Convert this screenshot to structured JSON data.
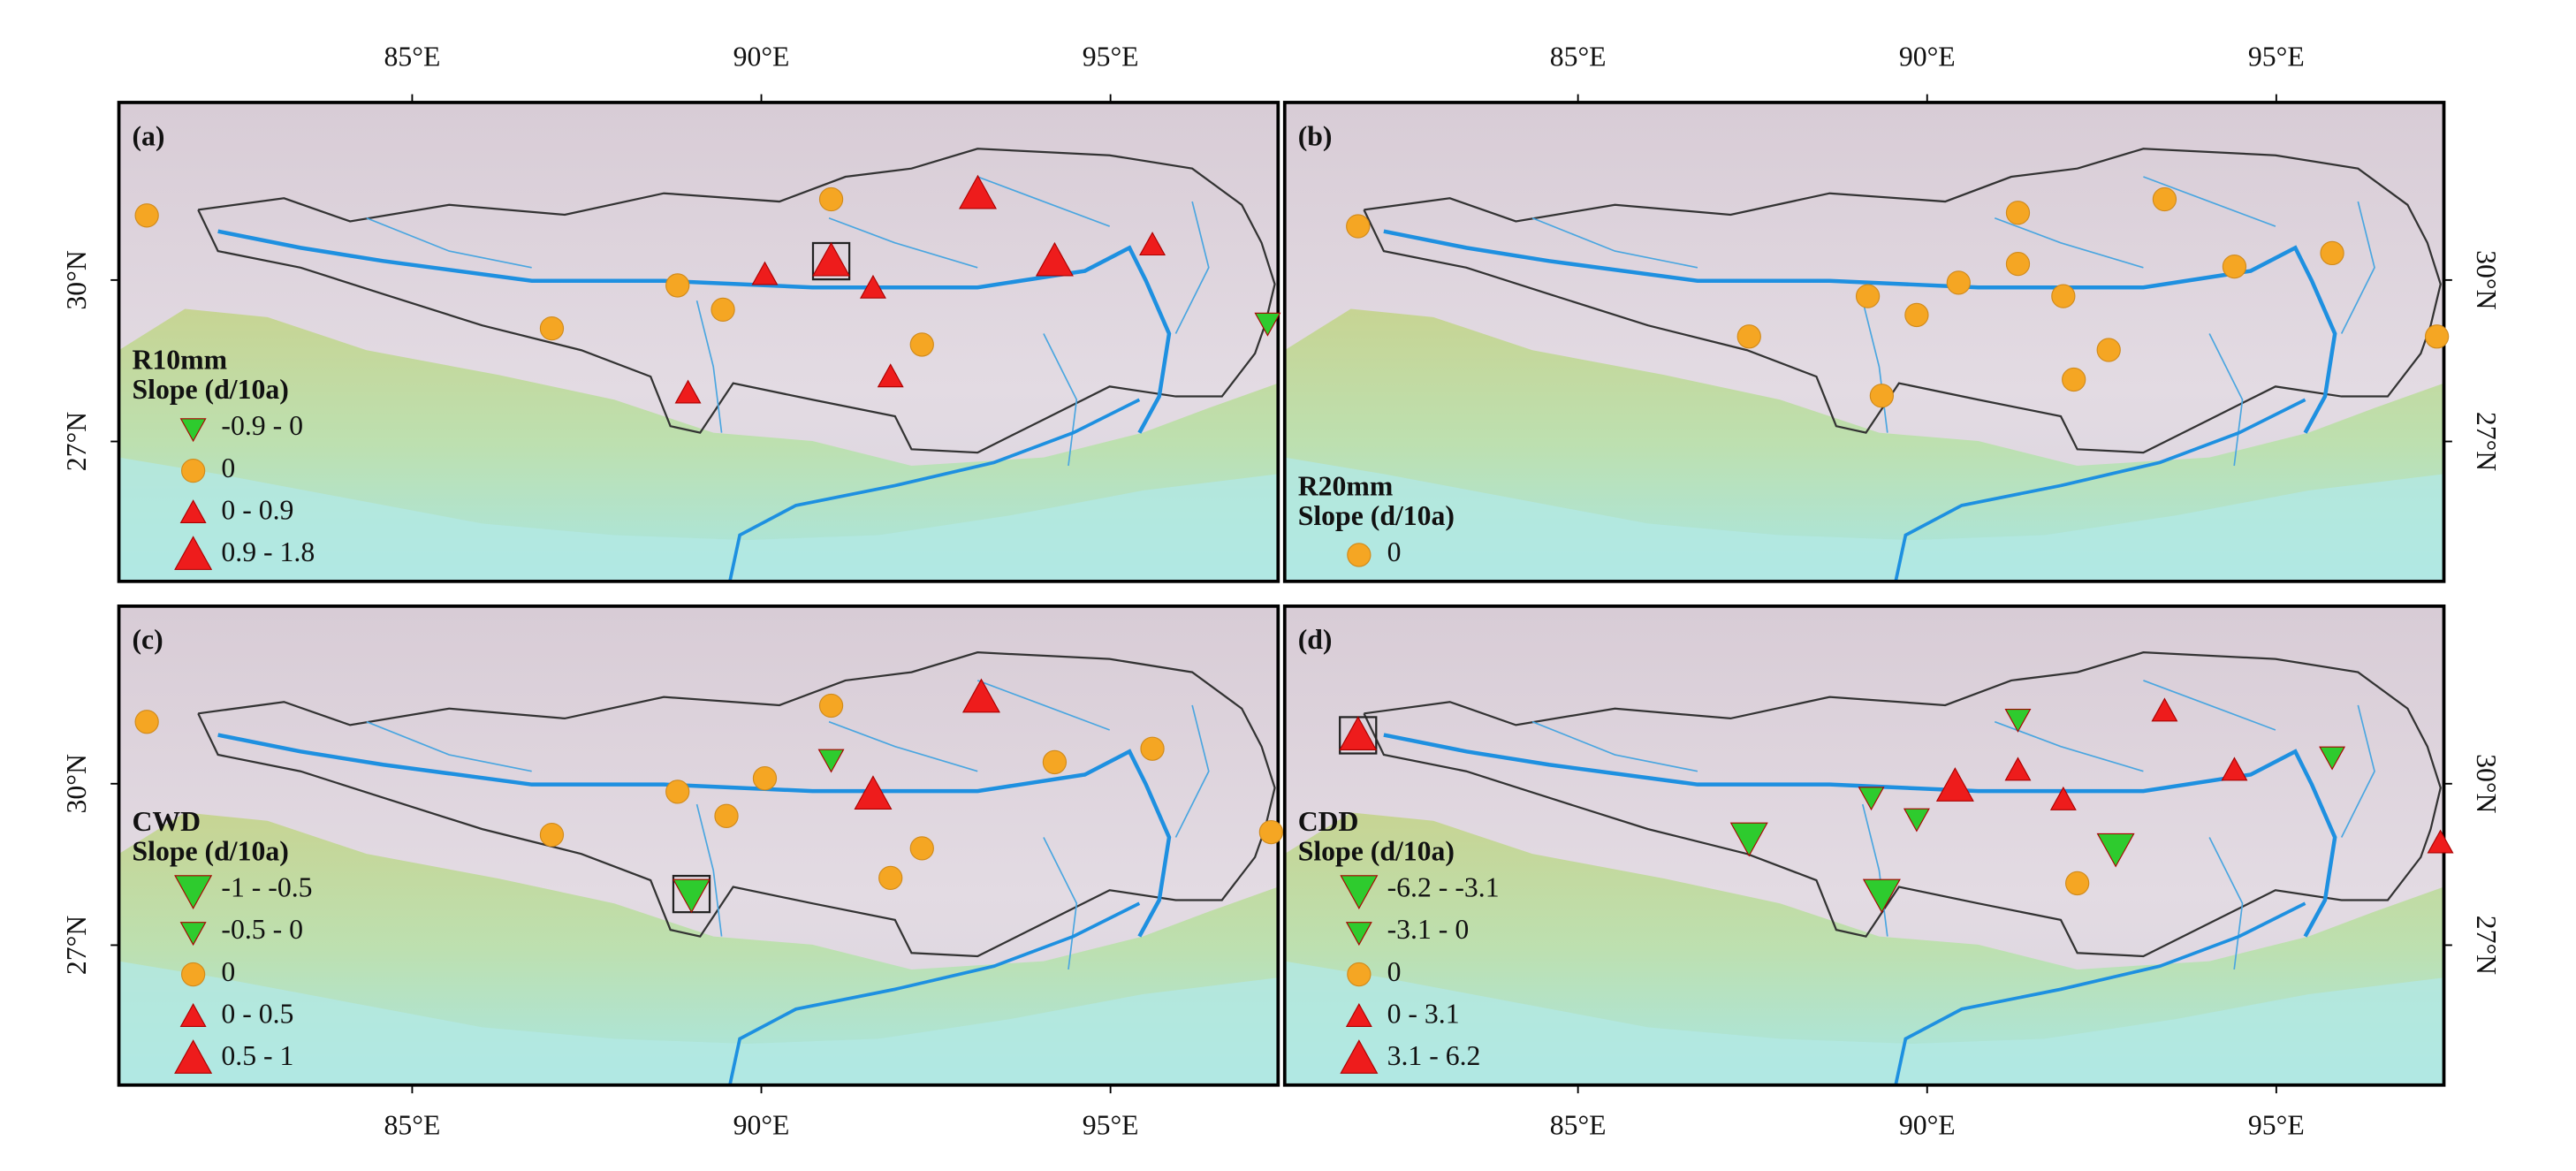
{
  "map": {
    "xlim": [
      80.8,
      97.4
    ],
    "ylim": [
      24.4,
      33.3
    ],
    "xticks": [
      {
        "value": 85,
        "label": "85°E"
      },
      {
        "value": 90,
        "label": "90°E"
      },
      {
        "value": 95,
        "label": "95°E"
      }
    ],
    "yticks": [
      {
        "value": 27,
        "label": "27°N"
      },
      {
        "value": 30,
        "label": "30°N"
      }
    ],
    "panels": [
      {
        "label": "(a)",
        "legend_title": [
          "R10mm",
          "Slope (d/10a)"
        ],
        "legend": [
          {
            "label": "-0.9 - 0",
            "shape": "down",
            "size": "small",
            "color": "#2ecb2e"
          },
          {
            "label": "0",
            "shape": "circle",
            "size": "small",
            "color": "#f5a623"
          },
          {
            "label": "0 - 0.9",
            "shape": "up",
            "size": "small",
            "color": "#ee1c1c"
          },
          {
            "label": "0.9 - 1.8",
            "shape": "up",
            "size": "large",
            "color": "#ee1c1c"
          }
        ],
        "stations": [
          {
            "lon": 81.2,
            "lat": 31.2,
            "class": 1
          },
          {
            "lon": 93.1,
            "lat": 31.6,
            "class": 3
          },
          {
            "lon": 91.0,
            "lat": 31.5,
            "class": 1
          },
          {
            "lon": 91.0,
            "lat": 30.35,
            "class": 3,
            "box": true
          },
          {
            "lon": 90.05,
            "lat": 30.1,
            "class": 2
          },
          {
            "lon": 94.2,
            "lat": 30.35,
            "class": 3
          },
          {
            "lon": 95.6,
            "lat": 30.65,
            "class": 2
          },
          {
            "lon": 88.8,
            "lat": 29.9,
            "class": 1
          },
          {
            "lon": 89.45,
            "lat": 29.45,
            "class": 1
          },
          {
            "lon": 91.6,
            "lat": 29.85,
            "class": 2
          },
          {
            "lon": 87.0,
            "lat": 29.1,
            "class": 1
          },
          {
            "lon": 92.3,
            "lat": 28.8,
            "class": 1
          },
          {
            "lon": 91.85,
            "lat": 28.2,
            "class": 2
          },
          {
            "lon": 88.95,
            "lat": 27.9,
            "class": 2
          },
          {
            "lon": 97.25,
            "lat": 29.2,
            "class": 0
          }
        ]
      },
      {
        "label": "(b)",
        "legend_title": [
          "R20mm",
          "Slope (d/10a)"
        ],
        "legend": [
          {
            "label": "0",
            "shape": "circle",
            "size": "small",
            "color": "#f5a623"
          }
        ],
        "stations": [
          {
            "lon": 81.85,
            "lat": 31.0,
            "class": 0
          },
          {
            "lon": 91.3,
            "lat": 31.25,
            "class": 0
          },
          {
            "lon": 93.4,
            "lat": 31.5,
            "class": 0
          },
          {
            "lon": 91.3,
            "lat": 30.3,
            "class": 0
          },
          {
            "lon": 90.45,
            "lat": 29.95,
            "class": 0
          },
          {
            "lon": 89.15,
            "lat": 29.7,
            "class": 0
          },
          {
            "lon": 91.95,
            "lat": 29.7,
            "class": 0
          },
          {
            "lon": 89.85,
            "lat": 29.35,
            "class": 0
          },
          {
            "lon": 94.4,
            "lat": 30.25,
            "class": 0
          },
          {
            "lon": 95.8,
            "lat": 30.5,
            "class": 0
          },
          {
            "lon": 87.45,
            "lat": 28.95,
            "class": 0
          },
          {
            "lon": 92.6,
            "lat": 28.7,
            "class": 0
          },
          {
            "lon": 92.1,
            "lat": 28.15,
            "class": 0
          },
          {
            "lon": 89.35,
            "lat": 27.85,
            "class": 0
          },
          {
            "lon": 97.3,
            "lat": 28.95,
            "class": 0
          }
        ]
      },
      {
        "label": "(c)",
        "legend_title": [
          "CWD",
          "Slope (d/10a)"
        ],
        "legend": [
          {
            "label": "-1 - -0.5",
            "shape": "down",
            "size": "large",
            "color": "#2ecb2e"
          },
          {
            "label": "-0.5 - 0",
            "shape": "down",
            "size": "small",
            "color": "#2ecb2e"
          },
          {
            "label": "0",
            "shape": "circle",
            "size": "small",
            "color": "#f5a623"
          },
          {
            "label": "0 - 0.5",
            "shape": "up",
            "size": "small",
            "color": "#ee1c1c"
          },
          {
            "label": "0.5 - 1",
            "shape": "up",
            "size": "large",
            "color": "#ee1c1c"
          }
        ],
        "stations": [
          {
            "lon": 81.2,
            "lat": 31.15,
            "class": 2
          },
          {
            "lon": 93.15,
            "lat": 31.6,
            "class": 4
          },
          {
            "lon": 91.0,
            "lat": 31.45,
            "class": 2
          },
          {
            "lon": 91.0,
            "lat": 30.45,
            "class": 1
          },
          {
            "lon": 90.05,
            "lat": 30.1,
            "class": 2
          },
          {
            "lon": 88.8,
            "lat": 29.85,
            "class": 2
          },
          {
            "lon": 91.6,
            "lat": 29.8,
            "class": 4
          },
          {
            "lon": 89.5,
            "lat": 29.4,
            "class": 2
          },
          {
            "lon": 94.2,
            "lat": 30.4,
            "class": 2
          },
          {
            "lon": 95.6,
            "lat": 30.65,
            "class": 2
          },
          {
            "lon": 87.0,
            "lat": 29.05,
            "class": 2
          },
          {
            "lon": 92.3,
            "lat": 28.8,
            "class": 2
          },
          {
            "lon": 91.85,
            "lat": 28.25,
            "class": 2
          },
          {
            "lon": 89.0,
            "lat": 27.95,
            "class": 0,
            "box": true
          },
          {
            "lon": 97.3,
            "lat": 29.1,
            "class": 2
          }
        ]
      },
      {
        "label": "(d)",
        "legend_title": [
          "CDD",
          "Slope (d/10a)"
        ],
        "legend": [
          {
            "label": "-6.2 - -3.1",
            "shape": "down",
            "size": "large",
            "color": "#2ecb2e"
          },
          {
            "label": "-3.1 - 0",
            "shape": "down",
            "size": "small",
            "color": "#2ecb2e"
          },
          {
            "label": "0",
            "shape": "circle",
            "size": "small",
            "color": "#f5a623"
          },
          {
            "label": "0 - 3.1",
            "shape": "up",
            "size": "small",
            "color": "#ee1c1c"
          },
          {
            "label": "3.1 - 6.2",
            "shape": "up",
            "size": "large",
            "color": "#ee1c1c"
          }
        ],
        "stations": [
          {
            "lon": 81.85,
            "lat": 30.9,
            "class": 4,
            "box": true
          },
          {
            "lon": 91.3,
            "lat": 31.2,
            "class": 1
          },
          {
            "lon": 93.4,
            "lat": 31.35,
            "class": 3
          },
          {
            "lon": 91.3,
            "lat": 30.25,
            "class": 3
          },
          {
            "lon": 90.4,
            "lat": 29.95,
            "class": 4
          },
          {
            "lon": 89.2,
            "lat": 29.75,
            "class": 1
          },
          {
            "lon": 89.85,
            "lat": 29.35,
            "class": 1
          },
          {
            "lon": 91.95,
            "lat": 29.7,
            "class": 3
          },
          {
            "lon": 94.4,
            "lat": 30.25,
            "class": 3
          },
          {
            "lon": 95.8,
            "lat": 30.5,
            "class": 1
          },
          {
            "lon": 87.45,
            "lat": 29.0,
            "class": 0
          },
          {
            "lon": 92.7,
            "lat": 28.8,
            "class": 0
          },
          {
            "lon": 92.15,
            "lat": 28.15,
            "class": 2
          },
          {
            "lon": 89.35,
            "lat": 27.95,
            "class": 0
          },
          {
            "lon": 97.35,
            "lat": 28.9,
            "class": 3
          }
        ]
      }
    ]
  }
}
